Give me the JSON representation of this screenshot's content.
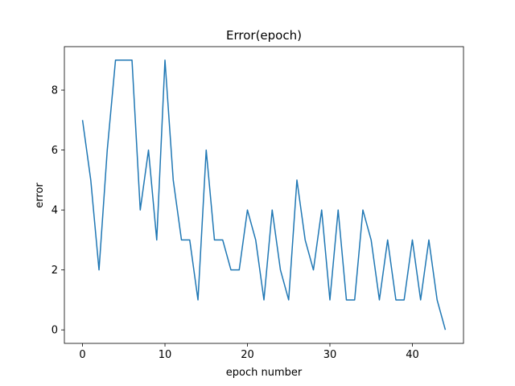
{
  "chart_data": {
    "type": "line",
    "title": "Error(epoch)",
    "xlabel": "epoch number",
    "ylabel": "error",
    "xlim": [
      -2.2,
      46.2
    ],
    "ylim": [
      -0.45,
      9.45
    ],
    "xticks": [
      0,
      10,
      20,
      30,
      40
    ],
    "yticks": [
      0,
      2,
      4,
      6,
      8
    ],
    "grid": false,
    "series": [
      {
        "color": "#1f77b4",
        "x": [
          0,
          1,
          2,
          3,
          4,
          5,
          6,
          7,
          8,
          9,
          10,
          11,
          12,
          13,
          14,
          15,
          16,
          17,
          18,
          19,
          20,
          21,
          22,
          23,
          24,
          25,
          26,
          27,
          28,
          29,
          30,
          31,
          32,
          33,
          34,
          35,
          36,
          37,
          38,
          39,
          40,
          41,
          42,
          43,
          44
        ],
        "y": [
          7,
          5,
          2,
          6,
          9,
          9,
          9,
          4,
          6,
          3,
          9,
          5,
          3,
          3,
          1,
          6,
          3,
          3,
          2,
          2,
          4,
          3,
          1,
          4,
          2,
          1,
          5,
          3,
          2,
          4,
          1,
          4,
          1,
          1,
          4,
          3,
          1,
          3,
          1,
          1,
          3,
          1,
          3,
          1,
          0
        ]
      }
    ]
  }
}
